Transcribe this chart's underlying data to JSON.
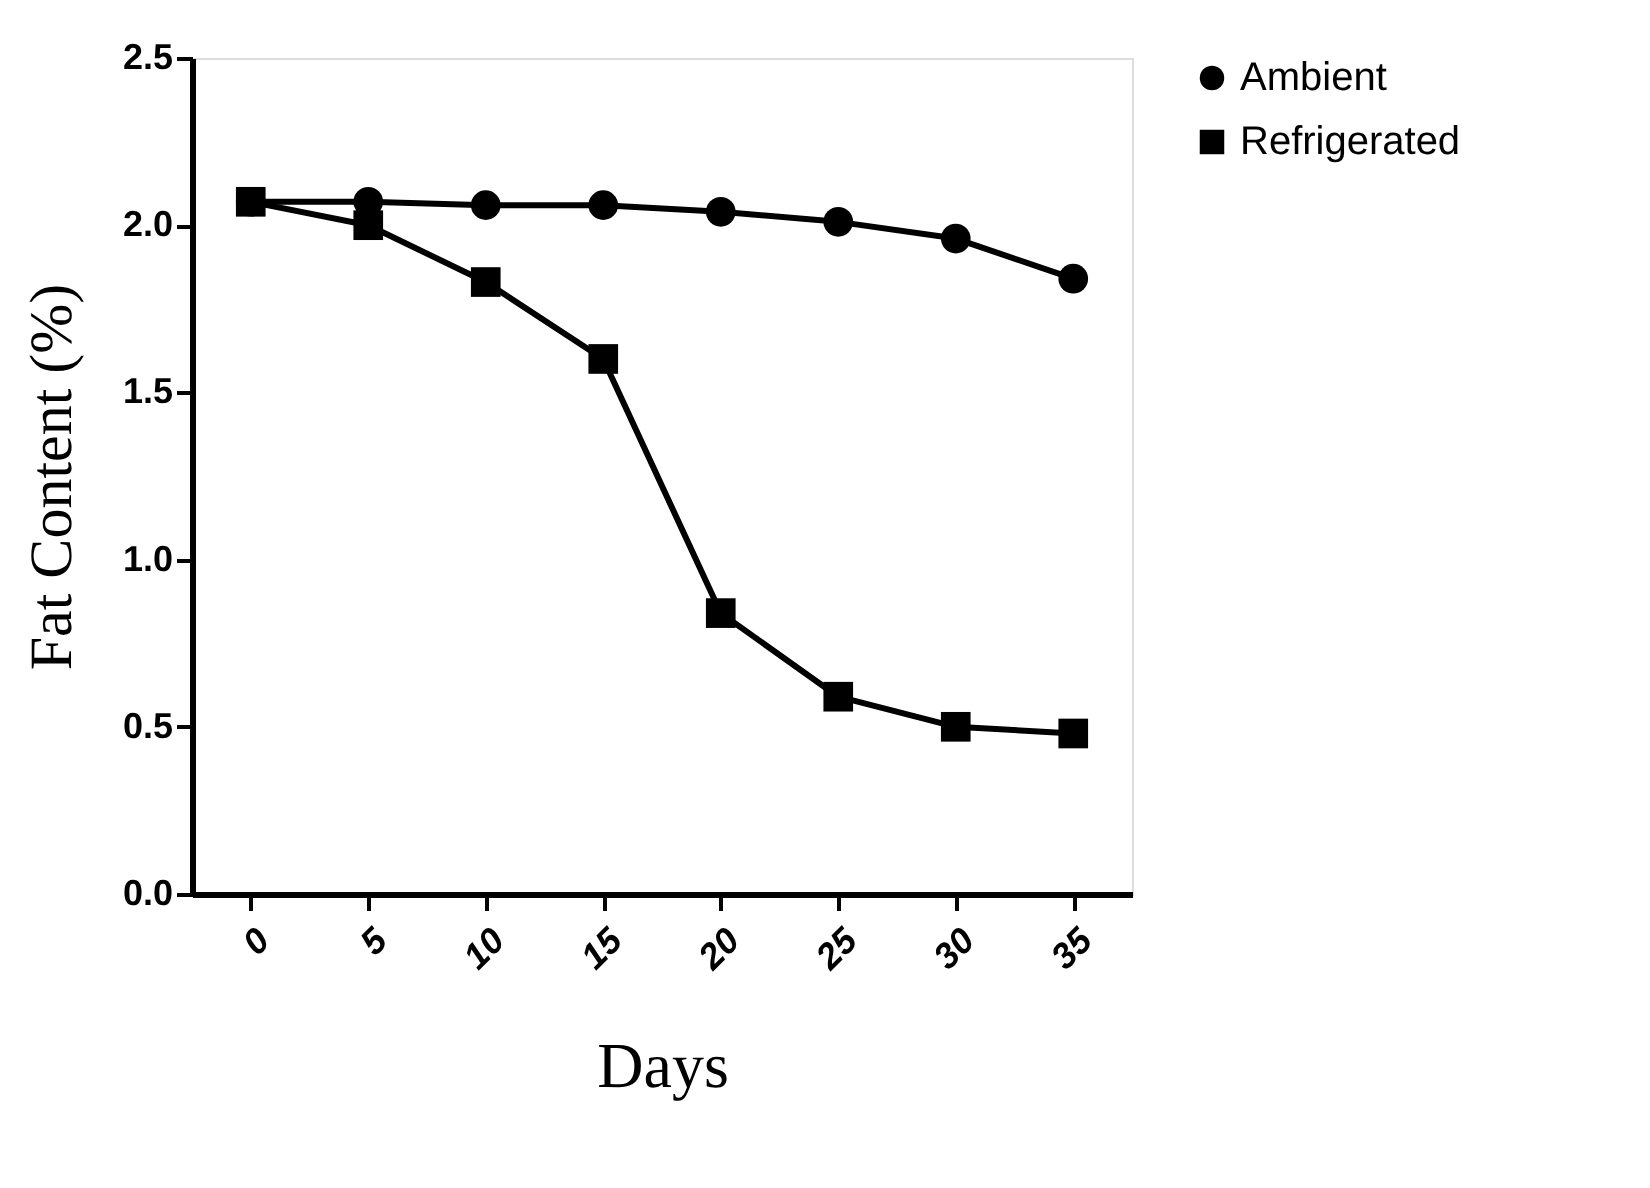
{
  "chart_data": {
    "type": "line",
    "xlabel": "Days",
    "ylabel": "Fat Content (%)",
    "categories": [
      "0",
      "5",
      "10",
      "15",
      "20",
      "25",
      "30",
      "35"
    ],
    "series": [
      {
        "name": "Ambient",
        "color": "#000000",
        "marker": "circle",
        "values": [
          2.07,
          2.07,
          2.06,
          2.06,
          2.04,
          2.01,
          1.96,
          1.84
        ]
      },
      {
        "name": "Refrigerated",
        "color": "#000000",
        "marker": "square",
        "values": [
          2.07,
          2.0,
          1.83,
          1.6,
          0.84,
          0.59,
          0.5,
          0.48
        ]
      }
    ],
    "ylim": [
      0,
      2.5
    ],
    "yticks": [
      {
        "value": 0,
        "label": "0.0"
      },
      0.5,
      {
        "value": 1,
        "label": "1.0"
      },
      1.5,
      {
        "value": 2,
        "label": "2.0"
      },
      2.5
    ],
    "grid": false,
    "legend": "top right",
    "line_style": "solid"
  }
}
